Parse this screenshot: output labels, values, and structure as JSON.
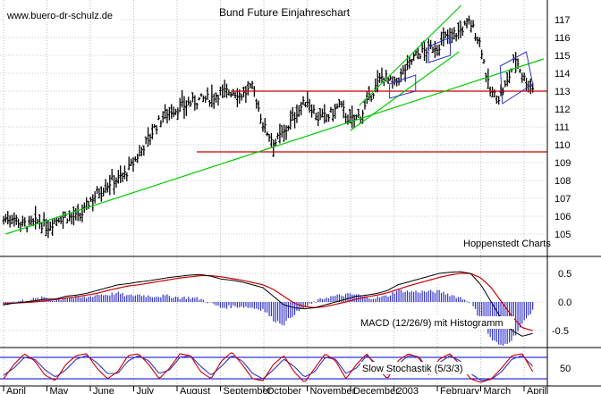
{
  "source_label": "www.buero-dr-schulz.de",
  "chart_data": {
    "type": "bar",
    "title": "Bund Future Einjahreschart",
    "provider": "Hoppenstedt Charts",
    "colors": {
      "bars": "#000000",
      "support_trend": "#00cc00",
      "horizontal_lines": "#cc0000",
      "histogram": "#3333cc",
      "macd_line": "#000000",
      "signal_line": "#cc0000",
      "stoch_k": "#cc0000",
      "stoch_d": "#3333cc",
      "stoch_bands": "#0000cc",
      "grid": "#999999"
    },
    "price_panel": {
      "ylim": [
        104,
        117.8
      ],
      "yticks": [
        105,
        106,
        107,
        108,
        109,
        110,
        111,
        112,
        113,
        114,
        115,
        116,
        117
      ],
      "months": [
        "April",
        "May",
        "June",
        "July",
        "August",
        "September",
        "October",
        "November",
        "December",
        "2003",
        "February",
        "March",
        "April"
      ],
      "series_month_index": [
        0,
        0.2,
        0.4,
        0.6,
        0.8,
        1,
        1.25,
        1.5,
        1.75,
        2,
        2.25,
        2.5,
        2.75,
        3,
        3.25,
        3.5,
        3.75,
        4,
        4.25,
        4.5,
        4.75,
        5,
        5.25,
        5.5,
        5.75,
        6,
        6.25,
        6.5,
        6.75,
        7,
        7.25,
        7.5,
        7.75,
        8,
        8.25,
        8.5,
        8.75,
        9,
        9.25,
        9.5,
        9.75,
        10,
        10.25,
        10.5,
        10.75,
        11,
        11.2,
        11.4,
        11.6,
        11.8,
        12,
        12.2
      ],
      "close": [
        105.8,
        106.0,
        105.6,
        105.5,
        105.7,
        105.4,
        105.9,
        106.0,
        105.9,
        106.9,
        107.5,
        108.0,
        108.2,
        109.0,
        110.0,
        111.0,
        111.8,
        112.0,
        112.3,
        112.5,
        112.6,
        112.9,
        113.0,
        112.8,
        113.2,
        111.0,
        110.1,
        110.8,
        111.8,
        112.5,
        111.5,
        111.6,
        112.2,
        111.3,
        111.7,
        112.9,
        113.9,
        113.3,
        114.2,
        115.0,
        115.3,
        115.5,
        116.1,
        116.3,
        116.9,
        115.6,
        113.0,
        112.6,
        113.4,
        114.9,
        113.7,
        113.2
      ],
      "horizontal_levels": [
        113.0,
        109.6
      ],
      "trend_lines": [
        {
          "name": "long-term support",
          "from": [
            0.05,
            105.0
          ],
          "to": [
            12.45,
            114.8
          ]
        },
        {
          "name": "rally channel lower",
          "from": [
            8.0,
            110.8
          ],
          "to": [
            10.5,
            115.2
          ]
        },
        {
          "name": "rally channel upper",
          "from": [
            8.2,
            112.2
          ],
          "to": [
            10.55,
            117.8
          ]
        }
      ],
      "flags": [
        {
          "name": "flag December",
          "points": [
            [
              8.9,
              113.4
            ],
            [
              9.5,
              113.9
            ],
            [
              9.5,
              113.0
            ],
            [
              8.9,
              112.6
            ]
          ]
        },
        {
          "name": "flag January",
          "points": [
            [
              9.8,
              115.5
            ],
            [
              10.3,
              116.0
            ],
            [
              10.3,
              115.0
            ],
            [
              9.8,
              114.6
            ]
          ]
        },
        {
          "name": "flag March",
          "points": [
            [
              11.45,
              114.4
            ],
            [
              12.05,
              115.2
            ],
            [
              12.2,
              113.4
            ],
            [
              11.5,
              112.3
            ]
          ]
        }
      ]
    },
    "macd_panel": {
      "label": "MACD (12/26/9) mit Histogramm",
      "ylim": [
        -0.75,
        0.75
      ],
      "yticks": [
        0.5,
        0.0,
        -0.5
      ],
      "macd": [
        -0.05,
        -0.02,
        0.0,
        0.02,
        0.05,
        0.05,
        0.1,
        0.12,
        0.15,
        0.2,
        0.25,
        0.3,
        0.32,
        0.35,
        0.37,
        0.4,
        0.43,
        0.45,
        0.47,
        0.48,
        0.45,
        0.4,
        0.38,
        0.35,
        0.3,
        0.25,
        0.1,
        -0.05,
        -0.1,
        -0.12,
        -0.1,
        -0.05,
        0.0,
        0.05,
        0.1,
        0.12,
        0.15,
        0.2,
        0.3,
        0.35,
        0.4,
        0.45,
        0.5,
        0.52,
        0.53,
        0.5,
        0.3,
        0.0,
        -0.3,
        -0.5,
        -0.6,
        -0.55
      ],
      "signal": [
        -0.03,
        -0.02,
        -0.01,
        0.0,
        0.02,
        0.04,
        0.07,
        0.09,
        0.12,
        0.15,
        0.2,
        0.24,
        0.28,
        0.3,
        0.33,
        0.36,
        0.39,
        0.42,
        0.44,
        0.46,
        0.46,
        0.44,
        0.41,
        0.38,
        0.34,
        0.3,
        0.22,
        0.1,
        -0.02,
        -0.08,
        -0.1,
        -0.08,
        -0.04,
        0.0,
        0.05,
        0.09,
        0.12,
        0.16,
        0.22,
        0.28,
        0.33,
        0.38,
        0.43,
        0.47,
        0.5,
        0.5,
        0.42,
        0.25,
        0.0,
        -0.25,
        -0.45,
        -0.5
      ]
    },
    "stoch_panel": {
      "label": "Slow Stochastik (5/3/3)",
      "ylim": [
        0,
        100
      ],
      "yticks": [
        50
      ],
      "bands": [
        80,
        20
      ],
      "k": [
        20,
        60,
        90,
        70,
        30,
        15,
        60,
        85,
        90,
        50,
        20,
        40,
        85,
        90,
        60,
        20,
        50,
        90,
        85,
        40,
        20,
        70,
        95,
        60,
        20,
        15,
        60,
        85,
        40,
        10,
        50,
        90,
        70,
        20,
        60,
        90,
        50,
        20,
        70,
        90,
        80,
        30,
        75,
        90,
        60,
        20,
        10,
        20,
        50,
        85,
        90,
        40
      ],
      "d": [
        30,
        50,
        80,
        75,
        45,
        25,
        45,
        75,
        85,
        65,
        35,
        35,
        70,
        85,
        70,
        35,
        45,
        80,
        85,
        55,
        30,
        55,
        85,
        70,
        35,
        20,
        45,
        75,
        55,
        25,
        40,
        80,
        75,
        35,
        50,
        85,
        60,
        30,
        60,
        85,
        82,
        45,
        65,
        85,
        70,
        35,
        15,
        18,
        40,
        75,
        85,
        55
      ]
    }
  }
}
